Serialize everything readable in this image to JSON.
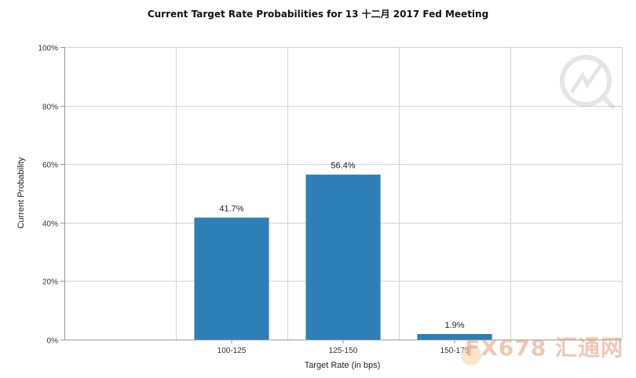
{
  "chart_data": {
    "type": "bar",
    "title": "Current Target Rate Probabilities for 13 十二月 2017 Fed Meeting",
    "xlabel": "Target Rate (in bps)",
    "ylabel": "Current Probability",
    "categories": [
      "",
      "100-125",
      "125-150",
      "150-175",
      ""
    ],
    "values": [
      null,
      41.7,
      56.4,
      1.9,
      null
    ],
    "data_labels": [
      "",
      "41.7%",
      "56.4%",
      "1.9%",
      ""
    ],
    "ylim": [
      0,
      100
    ],
    "yticks": [
      "0%",
      "20%",
      "40%",
      "60%",
      "80%",
      "100%"
    ],
    "grid": true,
    "bar_color": "#2e7fb8"
  },
  "watermark": {
    "text": "FX678 汇通网"
  }
}
